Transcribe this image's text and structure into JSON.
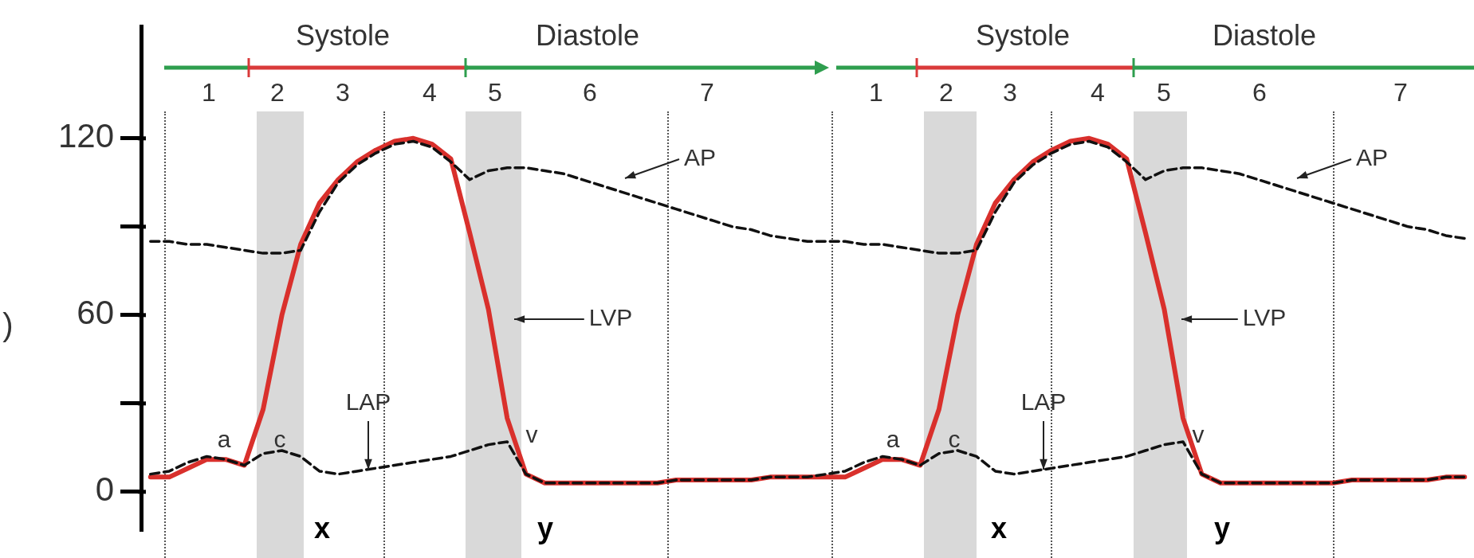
{
  "chart_data": {
    "type": "line",
    "ylabel": ")",
    "categories": [
      null,
      null,
      null,
      null,
      null,
      null,
      null,
      null,
      null,
      null,
      null,
      null,
      null,
      null,
      null,
      null,
      null,
      null,
      null,
      null,
      null,
      null,
      null,
      null,
      null,
      null,
      null,
      null,
      null,
      null,
      null,
      null,
      null,
      null,
      null,
      null,
      null,
      null,
      null,
      null,
      null,
      null,
      null,
      null,
      null,
      null,
      null,
      null,
      null,
      null,
      null,
      null,
      null,
      null,
      null,
      null,
      null,
      null,
      null,
      null,
      null,
      null,
      null,
      null,
      null,
      null,
      null,
      null,
      null,
      null,
      null
    ],
    "ylim": [
      -13.5,
      158
    ],
    "yticks": [
      0,
      {
        "value": 30,
        "label": null
      },
      60,
      {
        "value": 90,
        "label": null
      },
      120
    ],
    "tick_labels": "y",
    "grid": false,
    "legend": false,
    "marker": "none",
    "series": [
      {
        "color": "#111111",
        "line_style": "dashed",
        "values": [
          85,
          85,
          84,
          84,
          83,
          82,
          81,
          81,
          82,
          95,
          105,
          111,
          115,
          118,
          119,
          117,
          112,
          106,
          109,
          110,
          110,
          109,
          108,
          106,
          104,
          102,
          100,
          98,
          96,
          94,
          92,
          90,
          89,
          87,
          86,
          85,
          85,
          85,
          84,
          84,
          83,
          82,
          81,
          81,
          82,
          95,
          105,
          111,
          115,
          118,
          119,
          117,
          112,
          106,
          109,
          110,
          110,
          109,
          108,
          106,
          104,
          102,
          100,
          98,
          96,
          94,
          92,
          90,
          89,
          87,
          86
        ]
      },
      {
        "color": "#111111",
        "line_style": "dashed",
        "values": [
          6,
          7,
          10,
          12,
          11,
          9,
          13,
          14,
          12,
          7,
          6,
          7,
          8,
          9,
          10,
          11,
          12,
          14,
          16,
          17,
          6,
          3,
          3,
          3,
          3,
          3,
          3,
          3,
          4,
          4,
          4,
          4,
          4,
          5,
          5,
          5,
          6,
          7,
          10,
          12,
          11,
          9,
          13,
          14,
          12,
          7,
          6,
          7,
          8,
          9,
          10,
          11,
          12,
          14,
          16,
          17,
          6,
          3,
          3,
          3,
          3,
          3,
          3,
          3,
          4,
          4,
          4,
          4,
          4,
          5,
          5
        ]
      },
      {
        "color": "#d9302c",
        "line_style": "solid",
        "values": [
          5,
          5,
          8,
          11,
          11,
          9,
          28,
          60,
          84,
          98,
          106,
          112,
          116,
          119,
          120,
          118,
          113,
          88,
          62,
          25,
          6,
          3,
          3,
          3,
          3,
          3,
          3,
          3,
          4,
          4,
          4,
          4,
          4,
          5,
          5,
          5,
          5,
          5,
          8,
          11,
          11,
          9,
          28,
          60,
          84,
          98,
          106,
          112,
          116,
          119,
          120,
          118,
          113,
          88,
          62,
          25,
          6,
          3,
          3,
          3,
          3,
          3,
          3,
          3,
          4,
          4,
          4,
          4,
          4,
          5,
          5
        ]
      }
    ],
    "annotations": [
      "1",
      "2",
      "3",
      "4",
      "5",
      "6",
      "7",
      "1",
      "2",
      "3",
      "4",
      "5",
      "6",
      "7",
      "Systole",
      "Diastole",
      "Systole",
      "Diastole",
      "a",
      "c",
      "v",
      "a",
      "c",
      "v",
      "x",
      "y",
      "x",
      "y",
      "LAP",
      "AP",
      "LVP",
      "LAP",
      "AP",
      "LVP"
    ]
  }
}
